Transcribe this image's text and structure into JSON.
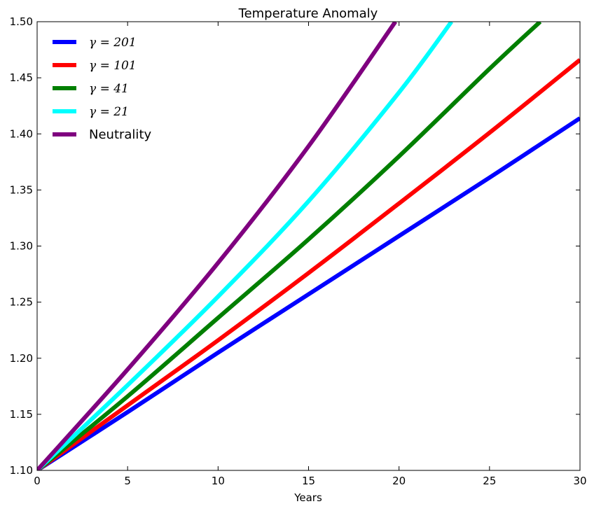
{
  "chart_data": {
    "type": "line",
    "title": "Temperature Anomaly",
    "xlabel": "Years",
    "ylabel": "",
    "xlim": [
      0,
      30
    ],
    "ylim": [
      1.1,
      1.5
    ],
    "xticks": [
      "0",
      "5",
      "10",
      "15",
      "20",
      "25",
      "30"
    ],
    "yticks": [
      "1.10",
      "1.15",
      "1.20",
      "1.25",
      "1.30",
      "1.35",
      "1.40",
      "1.45",
      "1.50"
    ],
    "grid": false,
    "legend_position": "top-left",
    "series": [
      {
        "name": "γ = 201",
        "color": "#0000ff",
        "x": [
          0,
          5,
          10,
          15,
          20,
          25,
          30
        ],
        "y": [
          1.1,
          1.152,
          1.205,
          1.257,
          1.309,
          1.361,
          1.414
        ]
      },
      {
        "name": "γ = 101",
        "color": "#ff0000",
        "x": [
          0,
          5,
          10,
          15,
          20,
          25,
          30
        ],
        "y": [
          1.1,
          1.158,
          1.216,
          1.276,
          1.338,
          1.401,
          1.466
        ]
      },
      {
        "name": "γ = 41",
        "color": "#007f00",
        "x": [
          0,
          5,
          10,
          15,
          20,
          25,
          27.8
        ],
        "y": [
          1.1,
          1.166,
          1.236,
          1.306,
          1.38,
          1.458,
          1.5
        ]
      },
      {
        "name": "γ = 21",
        "color": "#00ffff",
        "x": [
          0,
          5,
          10,
          15,
          20,
          22.9
        ],
        "y": [
          1.1,
          1.176,
          1.255,
          1.34,
          1.437,
          1.5
        ]
      },
      {
        "name": "Neutrality",
        "color": "#7f007f",
        "x": [
          0,
          5,
          10,
          15,
          19.8
        ],
        "y": [
          1.1,
          1.19,
          1.285,
          1.389,
          1.5
        ]
      }
    ]
  }
}
